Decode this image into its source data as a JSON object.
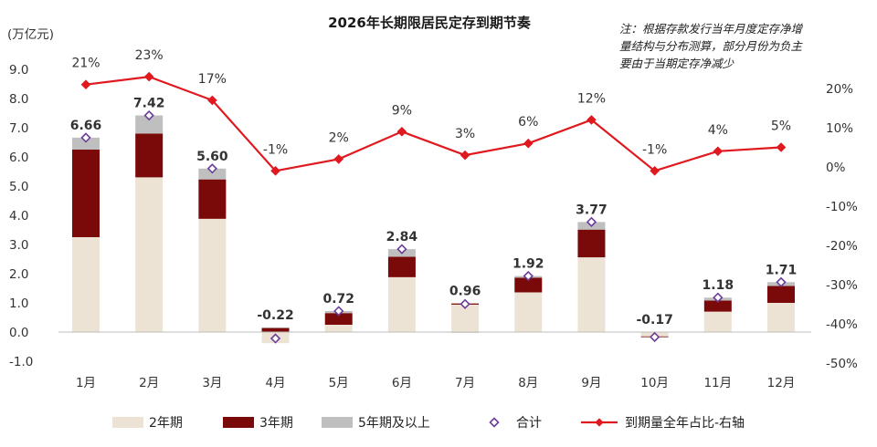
{
  "chart_data": {
    "type": "bar",
    "title": "2026年长期限居民定存到期节奏",
    "note_lines": [
      "注：根据存款发行当年月度定存净增",
      "量结构与分布测算，部分月份为负主",
      "要由于当期定存净减少"
    ],
    "unit_left": "(万亿元)",
    "categories": [
      "1月",
      "2月",
      "3月",
      "4月",
      "5月",
      "6月",
      "7月",
      "8月",
      "9月",
      "10月",
      "11月",
      "12月"
    ],
    "series": [
      {
        "name": "2年期",
        "kind": "bar",
        "color": "#ede3d4",
        "values": [
          3.25,
          5.3,
          3.88,
          -0.38,
          0.25,
          1.88,
          0.94,
          1.36,
          2.56,
          -0.15,
          0.7,
          1.0
        ]
      },
      {
        "name": "3年期",
        "kind": "bar",
        "color": "#7a0a0a",
        "values": [
          3.0,
          1.5,
          1.35,
          0.14,
          0.4,
          0.7,
          0.04,
          0.5,
          0.95,
          -0.02,
          0.38,
          0.58
        ]
      },
      {
        "name": "5年期及以上",
        "kind": "bar",
        "color": "#bfbfbf",
        "values": [
          0.41,
          0.62,
          0.37,
          0.02,
          0.07,
          0.26,
          -0.02,
          0.06,
          0.26,
          0.0,
          0.1,
          0.13
        ]
      },
      {
        "name": "合计",
        "kind": "marker",
        "color": "#6a3d9a",
        "values": [
          6.66,
          7.42,
          5.6,
          -0.22,
          0.72,
          2.84,
          0.96,
          1.92,
          3.77,
          -0.17,
          1.18,
          1.71
        ]
      },
      {
        "name": "到期量全年占比-右轴",
        "kind": "line",
        "axis": "right",
        "color": "#e0191f",
        "values": [
          21,
          23,
          17,
          -1,
          2,
          9,
          3,
          6,
          12,
          -1,
          4,
          5
        ]
      }
    ],
    "total_labels": [
      "6.66",
      "7.42",
      "5.60",
      "-0.22",
      "0.72",
      "2.84",
      "0.96",
      "1.92",
      "3.77",
      "-0.17",
      "1.18",
      "1.71"
    ],
    "pct_labels": [
      "21%",
      "23%",
      "17%",
      "-1%",
      "2%",
      "9%",
      "3%",
      "6%",
      "12%",
      "-1%",
      "4%",
      "5%"
    ],
    "y_left": {
      "min": -1.0,
      "max": 9.0,
      "ticks": [
        "9.0",
        "8.0",
        "7.0",
        "6.0",
        "5.0",
        "4.0",
        "3.0",
        "2.0",
        "1.0",
        "0.0",
        "-1.0"
      ]
    },
    "y_right": {
      "min": -50,
      "max": 20,
      "ticks": [
        "20%",
        "10%",
        "0%",
        "-10%",
        "-20%",
        "-30%",
        "-40%",
        "-50%"
      ]
    },
    "grid": false,
    "legend_position": "bottom"
  }
}
